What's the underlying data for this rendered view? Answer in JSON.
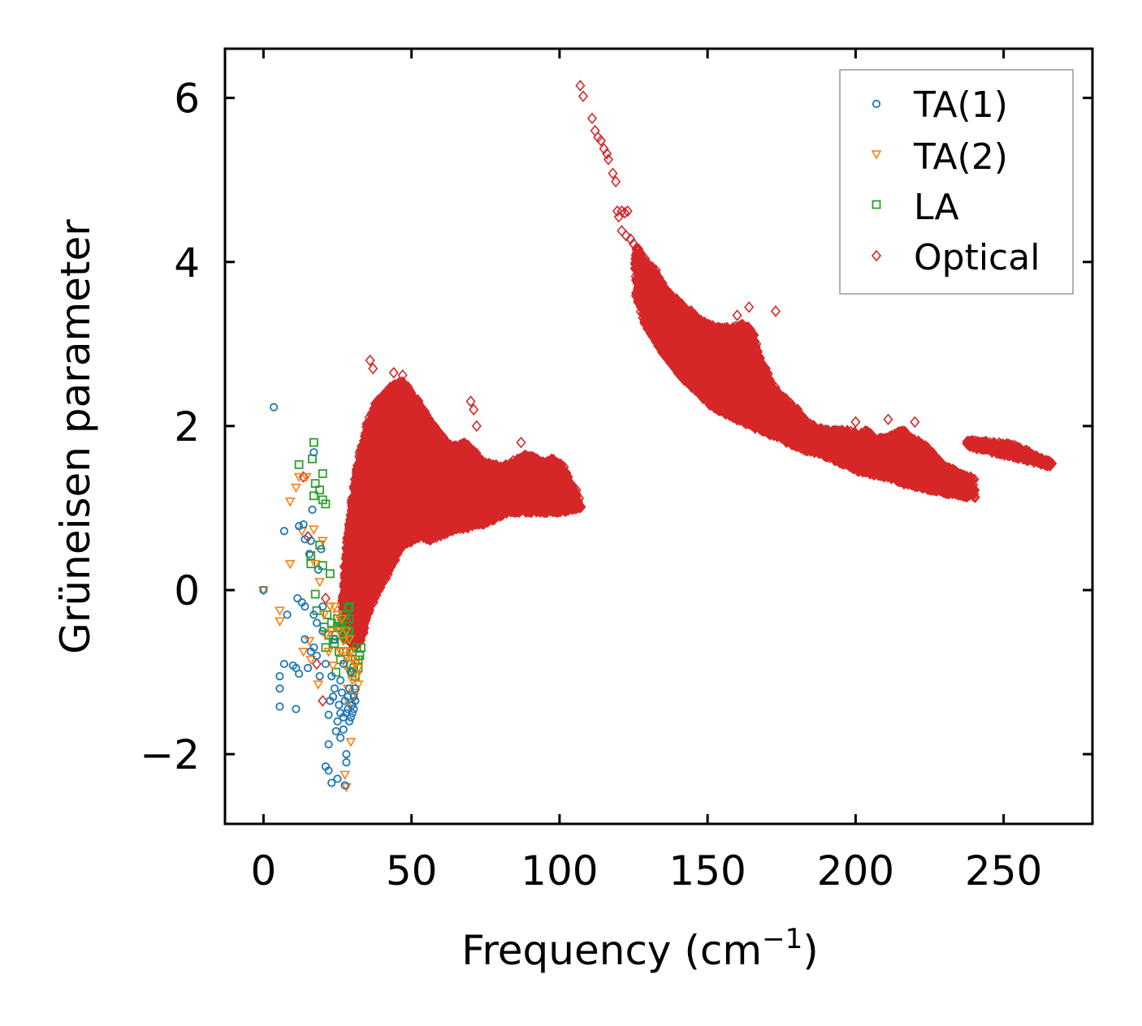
{
  "chart_data": {
    "type": "scatter",
    "xlabel": "Frequency (cm",
    "xlabel_sup": "−1",
    "xlabel_close": ")",
    "ylabel": "Grüneisen parameter",
    "xlim": [
      -13,
      280
    ],
    "ylim": [
      -2.85,
      6.6
    ],
    "xticks": [
      0,
      50,
      100,
      150,
      200,
      250
    ],
    "xtick_labels": [
      "0",
      "50",
      "100",
      "150",
      "200",
      "250"
    ],
    "yticks": [
      -2,
      0,
      2,
      4,
      6
    ],
    "ytick_labels": [
      "−2",
      "0",
      "2",
      "4",
      "6"
    ],
    "legend_position": "top-right",
    "series": [
      {
        "name": "TA(1)",
        "marker": "circle",
        "color": "#1f77b4",
        "points": [
          [
            0,
            0
          ],
          [
            3.5,
            2.23
          ],
          [
            5.5,
            -1.05
          ],
          [
            5.5,
            -1.2
          ],
          [
            5.5,
            -1.42
          ],
          [
            7,
            0.72
          ],
          [
            7,
            -0.9
          ],
          [
            8,
            -0.3
          ],
          [
            10,
            -0.92
          ],
          [
            11,
            -1.45
          ],
          [
            11,
            -0.95
          ],
          [
            11.5,
            -0.1
          ],
          [
            12,
            0.78
          ],
          [
            12,
            -1.02
          ],
          [
            13,
            -0.15
          ],
          [
            13.5,
            0.8
          ],
          [
            14,
            -0.2
          ],
          [
            14,
            -0.6
          ],
          [
            14,
            0.62
          ],
          [
            15,
            -0.95
          ],
          [
            15.5,
            0.44
          ],
          [
            16,
            0.6
          ],
          [
            16,
            -0.75
          ],
          [
            16.5,
            0.98
          ],
          [
            17,
            1.68
          ],
          [
            17,
            -0.7
          ],
          [
            17,
            -0.3
          ],
          [
            18,
            -0.4
          ],
          [
            18,
            -0.8
          ],
          [
            18.5,
            0.25
          ],
          [
            19,
            -1.05
          ],
          [
            19.5,
            0.5
          ],
          [
            20,
            -0.2
          ],
          [
            20,
            -0.5
          ],
          [
            21,
            -0.9
          ],
          [
            21,
            -2.15
          ],
          [
            22,
            -1.52
          ],
          [
            22,
            -1.88
          ],
          [
            22,
            -2.2
          ],
          [
            22.5,
            -1.35
          ],
          [
            23,
            -1.05
          ],
          [
            23,
            -2.35
          ],
          [
            23.5,
            -1.3
          ],
          [
            24,
            -0.6
          ],
          [
            24,
            -1.2
          ],
          [
            24.5,
            -1.72
          ],
          [
            25,
            -1.6
          ],
          [
            25,
            -2.3
          ],
          [
            25.5,
            -1.4
          ],
          [
            26,
            -1.1
          ],
          [
            26,
            -1.5
          ],
          [
            26,
            -1.8
          ],
          [
            26.5,
            -1.25
          ],
          [
            27,
            -0.9
          ],
          [
            27,
            -1.55
          ],
          [
            27,
            -1.7
          ],
          [
            27.5,
            -1.35
          ],
          [
            27.5,
            -2.38
          ],
          [
            28,
            -1.5
          ],
          [
            28,
            -2.0
          ],
          [
            28,
            -2.1
          ],
          [
            28.5,
            -1.45
          ],
          [
            28.5,
            -1.3
          ],
          [
            29,
            -1.6
          ],
          [
            29,
            -1.2
          ],
          [
            29.5,
            -1.55
          ],
          [
            29.5,
            -1.0
          ],
          [
            30,
            -1.4
          ],
          [
            30,
            -1.5
          ],
          [
            30.5,
            -1.3
          ],
          [
            30.5,
            -1.45
          ],
          [
            31,
            -1.2
          ],
          [
            31,
            -1.35
          ]
        ]
      },
      {
        "name": "TA(2)",
        "marker": "triangle-down",
        "color": "#ff7f0e",
        "points": [
          [
            0,
            0
          ],
          [
            5.5,
            -0.25
          ],
          [
            5.5,
            -0.38
          ],
          [
            9,
            0.32
          ],
          [
            9,
            1.08
          ],
          [
            11,
            1.25
          ],
          [
            12,
            1.38
          ],
          [
            13,
            0.72
          ],
          [
            13.5,
            -0.75
          ],
          [
            14.5,
            1.38
          ],
          [
            15.5,
            -0.62
          ],
          [
            16,
            -0.85
          ],
          [
            17,
            0.74
          ],
          [
            17.5,
            0.32
          ],
          [
            18.5,
            -1.15
          ],
          [
            19,
            0.1
          ],
          [
            20,
            0.6
          ],
          [
            20.5,
            -0.3
          ],
          [
            21,
            -0.55
          ],
          [
            22,
            -0.75
          ],
          [
            22.5,
            -0.2
          ],
          [
            23,
            -0.5
          ],
          [
            23.5,
            -0.92
          ],
          [
            24,
            -0.2
          ],
          [
            25,
            -0.3
          ],
          [
            25.5,
            -0.5
          ],
          [
            26,
            -0.75
          ],
          [
            26.5,
            -0.35
          ],
          [
            27,
            -0.62
          ],
          [
            27.5,
            -0.9
          ],
          [
            27.5,
            -2.25
          ],
          [
            28,
            -0.5
          ],
          [
            28,
            -0.8
          ],
          [
            28,
            -2.4
          ],
          [
            28.5,
            -1.2
          ],
          [
            29,
            -0.6
          ],
          [
            29,
            -1.0
          ],
          [
            29,
            -1.4
          ],
          [
            29.5,
            -0.75
          ],
          [
            29.5,
            -1.85
          ],
          [
            30,
            -0.85
          ],
          [
            30,
            -1.1
          ],
          [
            30.5,
            -1.3
          ],
          [
            31,
            -0.9
          ],
          [
            31,
            -1.25
          ],
          [
            31.5,
            -1.05
          ],
          [
            32,
            -1.15
          ],
          [
            32,
            -0.95
          ]
        ]
      },
      {
        "name": "LA",
        "marker": "square",
        "color": "#2ca02c",
        "points": [
          [
            12,
            1.53
          ],
          [
            16,
            0.42
          ],
          [
            16,
            0.32
          ],
          [
            16.5,
            1.6
          ],
          [
            17,
            1.8
          ],
          [
            17,
            1.15
          ],
          [
            17.5,
            1.3
          ],
          [
            17.5,
            -0.05
          ],
          [
            18,
            -0.25
          ],
          [
            19,
            1.22
          ],
          [
            19,
            0.55
          ],
          [
            20,
            1.42
          ],
          [
            20,
            1.1
          ],
          [
            20,
            0.3
          ],
          [
            20.5,
            -0.45
          ],
          [
            21,
            1.05
          ],
          [
            21,
            -0.7
          ],
          [
            21.5,
            -0.3
          ],
          [
            22,
            -0.55
          ],
          [
            22.5,
            0.2
          ],
          [
            23,
            -0.4
          ],
          [
            23.5,
            -0.6
          ],
          [
            24,
            -0.65
          ],
          [
            24.5,
            -0.55
          ],
          [
            24.5,
            -1.0
          ],
          [
            25,
            -0.35
          ],
          [
            25,
            -0.45
          ],
          [
            25.5,
            -0.75
          ],
          [
            26,
            -0.45
          ],
          [
            26,
            -0.85
          ],
          [
            26.5,
            -0.4
          ],
          [
            27,
            -0.55
          ],
          [
            27,
            -0.75
          ],
          [
            27.5,
            -0.3
          ],
          [
            27.5,
            -0.5
          ],
          [
            28,
            -0.4
          ],
          [
            28,
            -0.6
          ],
          [
            28,
            -0.75
          ],
          [
            28.5,
            -0.22
          ],
          [
            28.5,
            -0.5
          ],
          [
            29,
            -0.2
          ],
          [
            29,
            -0.35
          ],
          [
            29,
            -0.5
          ],
          [
            29.5,
            -0.9
          ],
          [
            30,
            -0.75
          ],
          [
            30,
            -1.0
          ],
          [
            30.5,
            -0.95
          ],
          [
            31,
            -0.85
          ],
          [
            31,
            -1.05
          ],
          [
            31.5,
            -0.7
          ],
          [
            32,
            -0.85
          ],
          [
            32,
            -0.95
          ],
          [
            32.5,
            -0.8
          ],
          [
            33,
            -0.7
          ]
        ]
      },
      {
        "name": "Optical",
        "marker": "diamond",
        "color": "#d62728",
        "envelope": [
          [
            27,
            -0.6,
            0.0
          ],
          [
            29,
            -0.6,
            0.8
          ],
          [
            31,
            -0.7,
            1.3
          ],
          [
            33,
            -0.6,
            1.7
          ],
          [
            35,
            -0.3,
            2.0
          ],
          [
            38,
            -0.05,
            2.3
          ],
          [
            41,
            0.15,
            2.4
          ],
          [
            44,
            0.35,
            2.5
          ],
          [
            47,
            0.55,
            2.55
          ],
          [
            50,
            0.6,
            2.4
          ],
          [
            53,
            0.65,
            2.25
          ],
          [
            56,
            0.6,
            2.05
          ],
          [
            59,
            0.65,
            1.95
          ],
          [
            62,
            0.7,
            1.8
          ],
          [
            65,
            0.75,
            1.75
          ],
          [
            68,
            0.75,
            1.8
          ],
          [
            71,
            0.8,
            1.7
          ],
          [
            74,
            0.8,
            1.55
          ],
          [
            77,
            0.85,
            1.55
          ],
          [
            80,
            0.9,
            1.5
          ],
          [
            83,
            0.95,
            1.55
          ],
          [
            86,
            0.95,
            1.6
          ],
          [
            89,
            0.95,
            1.65
          ],
          [
            92,
            0.95,
            1.6
          ],
          [
            95,
            0.95,
            1.55
          ],
          [
            98,
            0.95,
            1.6
          ],
          [
            101,
            0.95,
            1.5
          ],
          [
            104,
            0.98,
            1.3
          ],
          [
            107,
            1.0,
            1.1
          ],
          [
            126,
            3.55,
            4.2
          ],
          [
            129,
            3.25,
            4.0
          ],
          [
            132,
            3.05,
            3.9
          ],
          [
            135,
            2.9,
            3.7
          ],
          [
            138,
            2.75,
            3.6
          ],
          [
            141,
            2.6,
            3.5
          ],
          [
            144,
            2.5,
            3.4
          ],
          [
            147,
            2.4,
            3.3
          ],
          [
            150,
            2.3,
            3.25
          ],
          [
            153,
            2.2,
            3.2
          ],
          [
            156,
            2.15,
            3.2
          ],
          [
            159,
            2.1,
            3.2
          ],
          [
            162,
            2.05,
            3.25
          ],
          [
            165,
            2.0,
            3.15
          ],
          [
            168,
            1.95,
            2.8
          ],
          [
            171,
            1.9,
            2.55
          ],
          [
            174,
            1.85,
            2.4
          ],
          [
            177,
            1.8,
            2.3
          ],
          [
            180,
            1.75,
            2.2
          ],
          [
            183,
            1.7,
            2.05
          ],
          [
            186,
            1.68,
            2.0
          ],
          [
            189,
            1.65,
            1.95
          ],
          [
            192,
            1.6,
            1.95
          ],
          [
            195,
            1.55,
            1.95
          ],
          [
            198,
            1.5,
            1.95
          ],
          [
            201,
            1.45,
            1.9
          ],
          [
            204,
            1.42,
            1.95
          ],
          [
            207,
            1.4,
            1.85
          ],
          [
            210,
            1.38,
            1.85
          ],
          [
            213,
            1.35,
            1.9
          ],
          [
            216,
            1.3,
            1.95
          ],
          [
            219,
            1.28,
            1.85
          ],
          [
            222,
            1.25,
            1.8
          ],
          [
            225,
            1.22,
            1.7
          ],
          [
            228,
            1.2,
            1.6
          ],
          [
            231,
            1.18,
            1.5
          ],
          [
            234,
            1.16,
            1.45
          ],
          [
            237,
            1.14,
            1.4
          ],
          [
            240,
            1.12,
            1.35
          ],
          [
            238,
            1.75,
            1.82
          ],
          [
            242,
            1.72,
            1.82
          ],
          [
            246,
            1.68,
            1.8
          ],
          [
            250,
            1.65,
            1.8
          ],
          [
            254,
            1.62,
            1.76
          ],
          [
            258,
            1.58,
            1.7
          ],
          [
            262,
            1.55,
            1.62
          ],
          [
            266,
            1.5,
            1.56
          ]
        ],
        "extra_points": [
          [
            107,
            6.15
          ],
          [
            108,
            6.02
          ],
          [
            111,
            5.75
          ],
          [
            112,
            5.6
          ],
          [
            113,
            5.52
          ],
          [
            114,
            5.48
          ],
          [
            115,
            5.38
          ],
          [
            116,
            5.32
          ],
          [
            116.5,
            5.25
          ],
          [
            118,
            5.08
          ],
          [
            119,
            4.98
          ],
          [
            119.5,
            4.62
          ],
          [
            120,
            4.55
          ],
          [
            121,
            4.62
          ],
          [
            122,
            4.6
          ],
          [
            123,
            4.62
          ],
          [
            121,
            4.38
          ],
          [
            122.5,
            4.32
          ],
          [
            124,
            4.28
          ],
          [
            125,
            4.22
          ],
          [
            126,
            4.15
          ],
          [
            20,
            -1.35
          ],
          [
            18,
            -0.9
          ],
          [
            36,
            2.8
          ],
          [
            37,
            2.7
          ],
          [
            44,
            2.65
          ],
          [
            47,
            2.62
          ],
          [
            70,
            2.3
          ],
          [
            71,
            2.2
          ],
          [
            72,
            2.0
          ],
          [
            87,
            1.8
          ],
          [
            173,
            3.4
          ],
          [
            164,
            3.45
          ],
          [
            160,
            3.35
          ],
          [
            200,
            2.05
          ],
          [
            211,
            2.08
          ],
          [
            220,
            2.05
          ],
          [
            228,
            1.45
          ],
          [
            13.5,
            1.38
          ],
          [
            15,
            0.65
          ],
          [
            21,
            -0.1
          ]
        ]
      }
    ]
  }
}
